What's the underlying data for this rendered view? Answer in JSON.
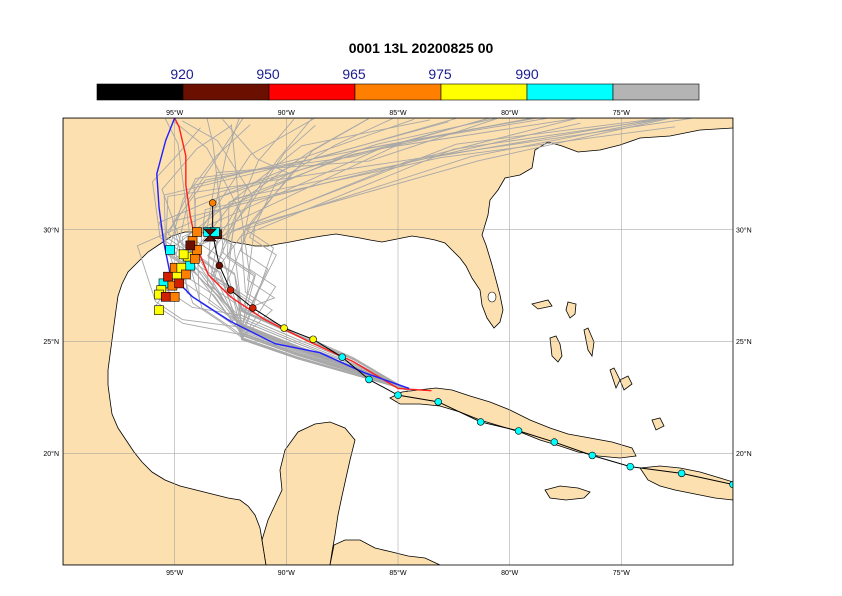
{
  "title": "0001 13L 20200825 00",
  "legend": {
    "labels": [
      "920",
      "950",
      "965",
      "975",
      "990"
    ],
    "colors": [
      "#000000",
      "#6b1000",
      "#ff0000",
      "#ff8000",
      "#ffff00",
      "#00ffff",
      "#b4b4b4"
    ]
  },
  "axes": {
    "x_ticks": [
      "95°W",
      "90°W",
      "85°W",
      "80°W",
      "75°W"
    ],
    "y_ticks": [
      "30°N",
      "25°N",
      "20°N"
    ],
    "lon_range": [
      -100,
      -70
    ],
    "lat_range": [
      15,
      35
    ]
  },
  "colors": {
    "land": "#fde0b0",
    "sea": "#ffffff",
    "ensemble": "#a8a8a8",
    "mean_track": "#ff2020",
    "control_track": "#2020ff",
    "observed_track": "#000000"
  },
  "observed_track": [
    {
      "lon": -70.0,
      "lat": 18.6,
      "c": "#00ffff"
    },
    {
      "lon": -72.3,
      "lat": 19.1,
      "c": "#00ffff"
    },
    {
      "lon": -74.6,
      "lat": 19.4,
      "c": "#00ffff"
    },
    {
      "lon": -76.3,
      "lat": 19.9,
      "c": "#00ffff"
    },
    {
      "lon": -78.0,
      "lat": 20.5,
      "c": "#00ffff"
    },
    {
      "lon": -79.6,
      "lat": 21.0,
      "c": "#00ffff"
    },
    {
      "lon": -81.3,
      "lat": 21.4,
      "c": "#00ffff"
    },
    {
      "lon": -83.2,
      "lat": 22.3,
      "c": "#00ffff"
    },
    {
      "lon": -85.0,
      "lat": 22.6,
      "c": "#00ffff"
    },
    {
      "lon": -86.3,
      "lat": 23.3,
      "c": "#00ffff"
    },
    {
      "lon": -87.5,
      "lat": 24.3,
      "c": "#00ffff"
    },
    {
      "lon": -88.8,
      "lat": 25.1,
      "c": "#ffff00"
    },
    {
      "lon": -90.1,
      "lat": 25.6,
      "c": "#ffff00"
    },
    {
      "lon": -91.5,
      "lat": 26.5,
      "c": "#d02000"
    },
    {
      "lon": -92.5,
      "lat": 27.3,
      "c": "#d02000"
    },
    {
      "lon": -93.0,
      "lat": 28.4,
      "c": "#6b1000"
    },
    {
      "lon": -93.3,
      "lat": 29.8,
      "c": "#6b1000"
    },
    {
      "lon": -93.3,
      "lat": 31.2,
      "c": "#ff8000"
    }
  ],
  "mean_track": [
    [
      -83.5,
      22.8
    ],
    [
      -85.0,
      22.9
    ],
    [
      -87.0,
      24.1
    ],
    [
      -89.0,
      25.0
    ],
    [
      -91.0,
      26.0
    ],
    [
      -92.5,
      27.0
    ],
    [
      -93.5,
      28.0
    ],
    [
      -94.0,
      29.2
    ],
    [
      -94.3,
      30.6
    ],
    [
      -94.5,
      32.0
    ],
    [
      -94.5,
      33.3
    ],
    [
      -94.8,
      34.6
    ],
    [
      -95.0,
      35.0
    ]
  ],
  "control_track": [
    [
      -84.5,
      22.9
    ],
    [
      -86.5,
      23.6
    ],
    [
      -88.5,
      24.5
    ],
    [
      -90.5,
      24.9
    ],
    [
      -92.5,
      25.9
    ],
    [
      -94.2,
      27.0
    ],
    [
      -95.2,
      28.0
    ],
    [
      -95.5,
      29.5
    ],
    [
      -95.7,
      31.0
    ],
    [
      -95.8,
      32.5
    ],
    [
      -95.4,
      34.0
    ],
    [
      -95.0,
      35.0
    ]
  ],
  "ensemble_end_markers": [
    {
      "lon": -95.2,
      "lat": 29.1,
      "c": "#00ffff"
    },
    {
      "lon": -95.5,
      "lat": 27.6,
      "c": "#00ffff"
    },
    {
      "lon": -95.6,
      "lat": 27.3,
      "c": "#ffff00"
    },
    {
      "lon": -95.3,
      "lat": 27.9,
      "c": "#d02000"
    },
    {
      "lon": -95.1,
      "lat": 27.5,
      "c": "#ff8000"
    },
    {
      "lon": -94.9,
      "lat": 28.0,
      "c": "#ffff00"
    },
    {
      "lon": -94.8,
      "lat": 27.6,
      "c": "#d02000"
    },
    {
      "lon": -95.0,
      "lat": 28.3,
      "c": "#ff8000"
    },
    {
      "lon": -94.7,
      "lat": 28.3,
      "c": "#ffff00"
    },
    {
      "lon": -94.5,
      "lat": 28.0,
      "c": "#ff8000"
    },
    {
      "lon": -94.3,
      "lat": 28.4,
      "c": "#00ffff"
    },
    {
      "lon": -94.4,
      "lat": 28.8,
      "c": "#ffff00"
    },
    {
      "lon": -94.1,
      "lat": 28.7,
      "c": "#ff8000"
    },
    {
      "lon": -94.0,
      "lat": 29.1,
      "c": "#ff8000"
    },
    {
      "lon": -94.2,
      "lat": 29.5,
      "c": "#ff8000"
    },
    {
      "lon": -94.0,
      "lat": 29.9,
      "c": "#ff8000"
    },
    {
      "lon": -95.7,
      "lat": 27.1,
      "c": "#ffff00"
    },
    {
      "lon": -95.4,
      "lat": 27.0,
      "c": "#d02000"
    },
    {
      "lon": -95.0,
      "lat": 27.0,
      "c": "#ff8000"
    },
    {
      "lon": -95.7,
      "lat": 26.4,
      "c": "#ffff00"
    },
    {
      "lon": -94.6,
      "lat": 28.9,
      "c": "#ffff00"
    },
    {
      "lon": -94.3,
      "lat": 29.3,
      "c": "#6b1000"
    },
    {
      "lon": -93.5,
      "lat": 29.9,
      "c": "#00ffff"
    },
    {
      "lon": -93.1,
      "lat": 29.8,
      "c": "#6b1000"
    },
    {
      "lon": -93.2,
      "lat": 29.9,
      "c": "#00ffff"
    }
  ]
}
